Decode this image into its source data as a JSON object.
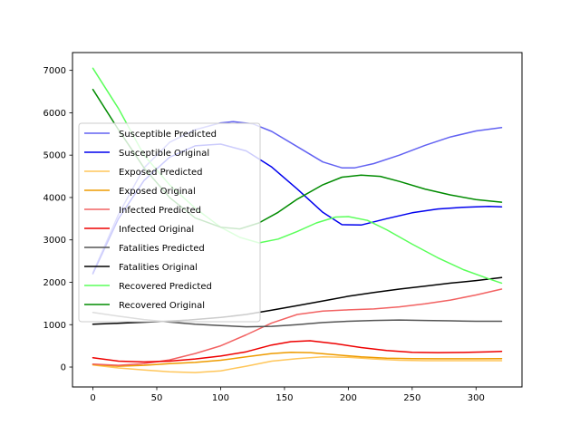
{
  "chart_data": {
    "type": "line",
    "title": "",
    "xlabel": "",
    "ylabel": "",
    "xlim": [
      -16,
      336
    ],
    "ylim": [
      -470,
      7420
    ],
    "xticks": [
      0,
      50,
      100,
      150,
      200,
      250,
      300
    ],
    "yticks": [
      0,
      1000,
      2000,
      3000,
      4000,
      5000,
      6000,
      7000
    ],
    "legend_position": "center-left",
    "grid": false,
    "series": [
      {
        "name": "Susceptible Predicted",
        "color": "#6262f2",
        "values": [
          [
            0,
            2220
          ],
          [
            20,
            3600
          ],
          [
            40,
            4700
          ],
          [
            60,
            5300
          ],
          [
            80,
            5600
          ],
          [
            100,
            5760
          ],
          [
            110,
            5790
          ],
          [
            125,
            5740
          ],
          [
            140,
            5560
          ],
          [
            160,
            5200
          ],
          [
            180,
            4840
          ],
          [
            195,
            4700
          ],
          [
            205,
            4700
          ],
          [
            220,
            4800
          ],
          [
            240,
            5000
          ],
          [
            260,
            5230
          ],
          [
            280,
            5430
          ],
          [
            300,
            5570
          ],
          [
            320,
            5650
          ]
        ]
      },
      {
        "name": "Susceptible Original",
        "color": "#0000ee",
        "values": [
          [
            0,
            2200
          ],
          [
            20,
            3500
          ],
          [
            40,
            4400
          ],
          [
            60,
            4950
          ],
          [
            80,
            5220
          ],
          [
            100,
            5260
          ],
          [
            120,
            5100
          ],
          [
            140,
            4720
          ],
          [
            160,
            4200
          ],
          [
            180,
            3650
          ],
          [
            195,
            3360
          ],
          [
            210,
            3350
          ],
          [
            230,
            3500
          ],
          [
            250,
            3640
          ],
          [
            270,
            3730
          ],
          [
            290,
            3770
          ],
          [
            310,
            3790
          ],
          [
            320,
            3780
          ]
        ]
      },
      {
        "name": "Exposed Predicted",
        "color": "#ffc65a",
        "values": [
          [
            0,
            50
          ],
          [
            20,
            -20
          ],
          [
            40,
            -70
          ],
          [
            60,
            -110
          ],
          [
            80,
            -130
          ],
          [
            100,
            -90
          ],
          [
            120,
            20
          ],
          [
            140,
            140
          ],
          [
            160,
            200
          ],
          [
            180,
            240
          ],
          [
            200,
            230
          ],
          [
            220,
            190
          ],
          [
            240,
            160
          ],
          [
            260,
            150
          ],
          [
            280,
            150
          ],
          [
            300,
            150
          ],
          [
            320,
            150
          ]
        ]
      },
      {
        "name": "Exposed Original",
        "color": "#ee9b00",
        "values": [
          [
            0,
            60
          ],
          [
            20,
            20
          ],
          [
            40,
            40
          ],
          [
            60,
            80
          ],
          [
            80,
            110
          ],
          [
            100,
            160
          ],
          [
            120,
            240
          ],
          [
            140,
            320
          ],
          [
            155,
            350
          ],
          [
            170,
            340
          ],
          [
            190,
            290
          ],
          [
            210,
            240
          ],
          [
            230,
            210
          ],
          [
            250,
            200
          ],
          [
            270,
            195
          ],
          [
            300,
            195
          ],
          [
            320,
            200
          ]
        ]
      },
      {
        "name": "Infected Predicted",
        "color": "#f26262",
        "values": [
          [
            0,
            70
          ],
          [
            20,
            40
          ],
          [
            40,
            80
          ],
          [
            60,
            170
          ],
          [
            80,
            320
          ],
          [
            100,
            500
          ],
          [
            120,
            760
          ],
          [
            140,
            1040
          ],
          [
            160,
            1240
          ],
          [
            180,
            1320
          ],
          [
            200,
            1350
          ],
          [
            220,
            1370
          ],
          [
            240,
            1420
          ],
          [
            260,
            1490
          ],
          [
            280,
            1580
          ],
          [
            300,
            1700
          ],
          [
            320,
            1840
          ]
        ]
      },
      {
        "name": "Infected Original",
        "color": "#ee0000",
        "values": [
          [
            0,
            220
          ],
          [
            20,
            140
          ],
          [
            40,
            120
          ],
          [
            60,
            140
          ],
          [
            80,
            190
          ],
          [
            100,
            260
          ],
          [
            120,
            360
          ],
          [
            140,
            520
          ],
          [
            155,
            600
          ],
          [
            170,
            620
          ],
          [
            190,
            550
          ],
          [
            210,
            460
          ],
          [
            230,
            390
          ],
          [
            250,
            350
          ],
          [
            270,
            340
          ],
          [
            290,
            345
          ],
          [
            310,
            360
          ],
          [
            320,
            370
          ]
        ]
      },
      {
        "name": "Fatalities Predicted",
        "color": "#555555",
        "values": [
          [
            0,
            1290
          ],
          [
            20,
            1200
          ],
          [
            40,
            1120
          ],
          [
            60,
            1060
          ],
          [
            80,
            1010
          ],
          [
            100,
            980
          ],
          [
            120,
            950
          ],
          [
            140,
            960
          ],
          [
            160,
            1000
          ],
          [
            180,
            1050
          ],
          [
            200,
            1080
          ],
          [
            220,
            1100
          ],
          [
            240,
            1110
          ],
          [
            260,
            1100
          ],
          [
            280,
            1090
          ],
          [
            300,
            1080
          ],
          [
            320,
            1080
          ]
        ]
      },
      {
        "name": "Fatalities Original",
        "color": "#000000",
        "values": [
          [
            0,
            1010
          ],
          [
            25,
            1040
          ],
          [
            50,
            1070
          ],
          [
            75,
            1110
          ],
          [
            100,
            1170
          ],
          [
            120,
            1240
          ],
          [
            140,
            1340
          ],
          [
            160,
            1450
          ],
          [
            180,
            1560
          ],
          [
            200,
            1670
          ],
          [
            220,
            1760
          ],
          [
            240,
            1840
          ],
          [
            260,
            1910
          ],
          [
            280,
            1980
          ],
          [
            300,
            2040
          ],
          [
            320,
            2110
          ]
        ]
      },
      {
        "name": "Recovered Predicted",
        "color": "#5aff5a",
        "values": [
          [
            0,
            7050
          ],
          [
            20,
            6100
          ],
          [
            40,
            5000
          ],
          [
            60,
            4300
          ],
          [
            80,
            3750
          ],
          [
            100,
            3300
          ],
          [
            115,
            3060
          ],
          [
            130,
            2930
          ],
          [
            145,
            3020
          ],
          [
            160,
            3200
          ],
          [
            175,
            3400
          ],
          [
            190,
            3540
          ],
          [
            200,
            3550
          ],
          [
            215,
            3460
          ],
          [
            230,
            3240
          ],
          [
            250,
            2900
          ],
          [
            270,
            2580
          ],
          [
            290,
            2300
          ],
          [
            310,
            2080
          ],
          [
            320,
            1980
          ]
        ]
      },
      {
        "name": "Recovered Original",
        "color": "#008b00",
        "values": [
          [
            0,
            6550
          ],
          [
            20,
            5600
          ],
          [
            40,
            4700
          ],
          [
            60,
            4000
          ],
          [
            80,
            3520
          ],
          [
            100,
            3300
          ],
          [
            115,
            3260
          ],
          [
            130,
            3400
          ],
          [
            145,
            3650
          ],
          [
            160,
            3960
          ],
          [
            180,
            4300
          ],
          [
            195,
            4480
          ],
          [
            210,
            4530
          ],
          [
            225,
            4500
          ],
          [
            240,
            4380
          ],
          [
            260,
            4200
          ],
          [
            280,
            4060
          ],
          [
            300,
            3950
          ],
          [
            320,
            3890
          ]
        ]
      }
    ]
  }
}
